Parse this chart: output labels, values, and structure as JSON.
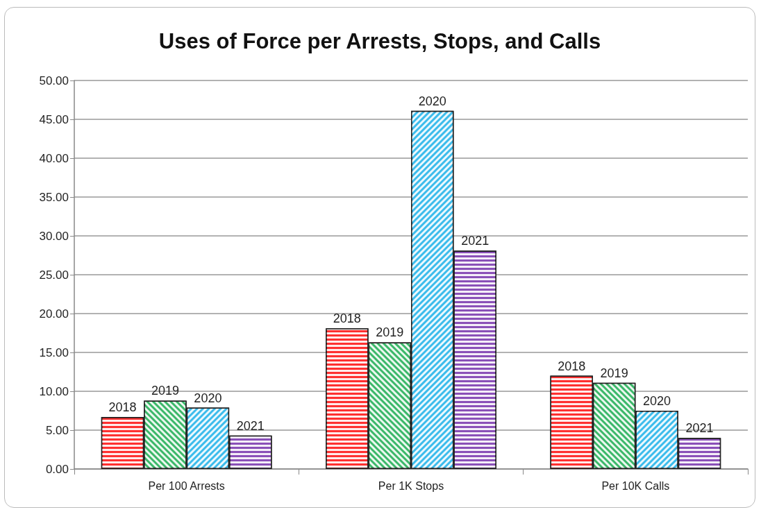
{
  "chart_data": {
    "type": "bar",
    "title": "Uses of Force per Arrests, Stops, and Calls",
    "categories": [
      "Per 100 Arrests",
      "Per 1K Stops",
      "Per 10K Calls"
    ],
    "series": [
      {
        "name": "2018",
        "color": "#ff3030",
        "values": [
          6.7,
          18.1,
          12.0
        ]
      },
      {
        "name": "2019",
        "color": "#3cb86a",
        "values": [
          8.8,
          16.3,
          11.1
        ]
      },
      {
        "name": "2020",
        "color": "#3cbcec",
        "values": [
          7.9,
          46.1,
          7.5
        ]
      },
      {
        "name": "2021",
        "color": "#8a50b8",
        "values": [
          4.3,
          28.1,
          4.0
        ]
      }
    ],
    "ylim": [
      0,
      50
    ],
    "yticks": [
      {
        "value": 0,
        "label": "0.00"
      },
      {
        "value": 5,
        "label": "5.00"
      },
      {
        "value": 10,
        "label": "10.00"
      },
      {
        "value": 15,
        "label": "15.00"
      },
      {
        "value": 20,
        "label": "20.00"
      },
      {
        "value": 25,
        "label": "25.00"
      },
      {
        "value": 30,
        "label": "30.00"
      },
      {
        "value": 35,
        "label": "35.00"
      },
      {
        "value": 40,
        "label": "40.00"
      },
      {
        "value": 45,
        "label": "45.00"
      },
      {
        "value": 50,
        "label": "50.00"
      }
    ],
    "grid": "y",
    "legend": false
  }
}
